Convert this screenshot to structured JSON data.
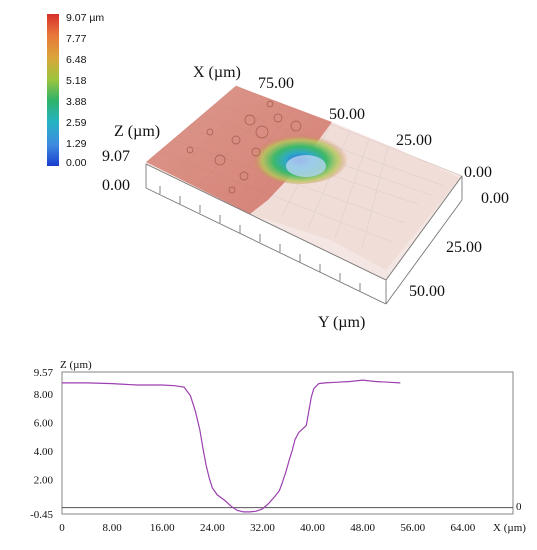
{
  "colorbar": {
    "labels": [
      "9.07 µm",
      "7.77",
      "6.48",
      "5.18",
      "3.88",
      "2.59",
      "1.29",
      "0.00"
    ],
    "colors": [
      "#d7302c",
      "#e8783a",
      "#d9a63a",
      "#9cc43e",
      "#2fb36a",
      "#25b3c4",
      "#3f8be0",
      "#1a3ccf"
    ]
  },
  "surface3d": {
    "x_axis_label": "X (µm)",
    "y_axis_label": "Y (µm)",
    "z_axis_label": "Z (µm)",
    "z_ticks": [
      "9.07",
      "0.00"
    ],
    "x_ticks": [
      "75.00",
      "50.00",
      "25.00",
      "0.00"
    ],
    "y_ticks": [
      "0.00",
      "25.00",
      "50.00"
    ]
  },
  "chart_data": {
    "type": "line",
    "title": "",
    "xlabel": "X (µm)",
    "ylabel": "Z (µm)",
    "xlim": [
      0,
      72
    ],
    "ylim": [
      -0.45,
      9.57
    ],
    "x_tick_labels": [
      "0",
      "8.00",
      "16.00",
      "24.00",
      "32.00",
      "40.00",
      "48.00",
      "56.00",
      "64.00"
    ],
    "x_tick_values": [
      0,
      8,
      16,
      24,
      32,
      40,
      48,
      56,
      64
    ],
    "y_tick_labels": [
      "9.57",
      "8.00",
      "6.00",
      "4.00",
      "2.00",
      "-0.45"
    ],
    "y_tick_values": [
      9.57,
      8,
      6,
      4,
      2,
      -0.45
    ],
    "right_axis_label": "0",
    "line_color": "#9c3fb0",
    "series": [
      {
        "x": [
          0,
          4,
          8,
          12,
          16,
          18,
          19.5,
          20.5,
          21.3,
          22,
          22.5,
          23,
          23.5,
          24,
          24.8,
          26,
          27,
          28,
          29,
          30,
          31,
          32,
          33,
          34,
          34.7,
          35.2,
          35.8,
          36.3,
          36.8,
          37.2,
          37.8,
          38.5,
          39,
          39.4,
          39.8,
          40.2,
          41,
          42,
          44,
          46,
          48,
          50,
          52,
          54
        ],
        "y": [
          8.8,
          8.8,
          8.75,
          8.65,
          8.65,
          8.6,
          8.5,
          7.9,
          6.8,
          5.5,
          4.2,
          3.0,
          2.1,
          1.4,
          0.9,
          0.5,
          0.1,
          -0.2,
          -0.3,
          -0.3,
          -0.25,
          -0.1,
          0.3,
          0.8,
          1.2,
          1.8,
          2.6,
          3.4,
          4.1,
          4.8,
          5.3,
          5.6,
          5.8,
          6.8,
          7.8,
          8.4,
          8.75,
          8.8,
          8.85,
          8.9,
          9.0,
          8.9,
          8.85,
          8.8
        ]
      }
    ]
  }
}
